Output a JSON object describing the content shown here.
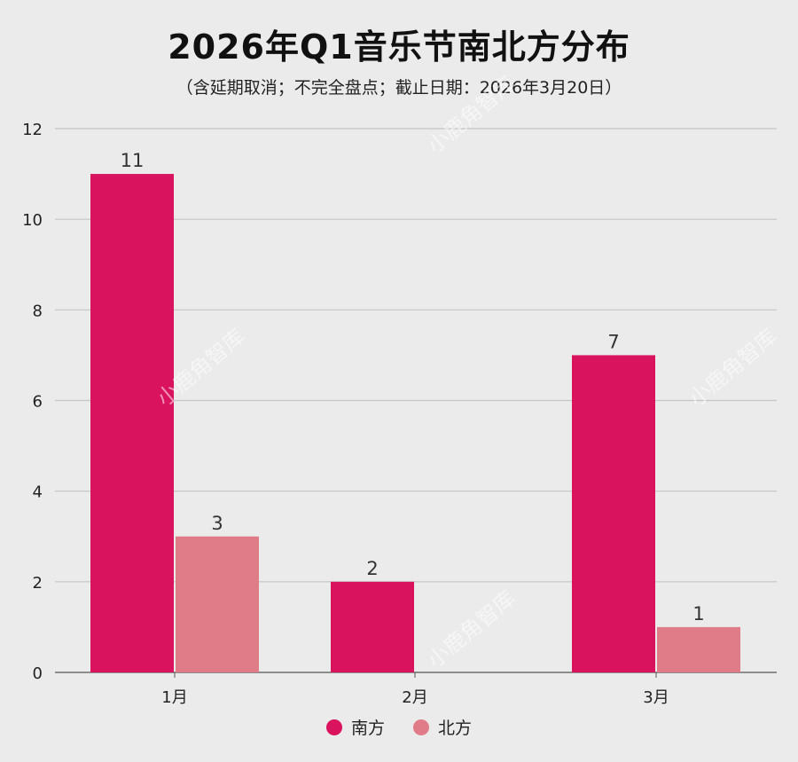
{
  "title": "2026年Q1音乐节南北方分布",
  "subtitle": "（含延期取消；不完全盘点；截止日期：2026年3月20日）",
  "watermark": "小鹿角智库",
  "chart_data": {
    "type": "bar",
    "categories": [
      "1月",
      "2月",
      "3月"
    ],
    "series": [
      {
        "name": "南方",
        "color": "#d9135e",
        "values": [
          11,
          2,
          7
        ]
      },
      {
        "name": "北方",
        "color": "#e07b88",
        "values": [
          3,
          0,
          1
        ]
      }
    ],
    "data_labels": [
      [
        "11",
        "2",
        "7"
      ],
      [
        "3",
        "",
        "1"
      ]
    ],
    "ylim": [
      0,
      12
    ],
    "yticks": [
      0,
      2,
      4,
      6,
      8,
      10,
      12
    ],
    "grid": true,
    "legend_position": "bottom-center"
  }
}
